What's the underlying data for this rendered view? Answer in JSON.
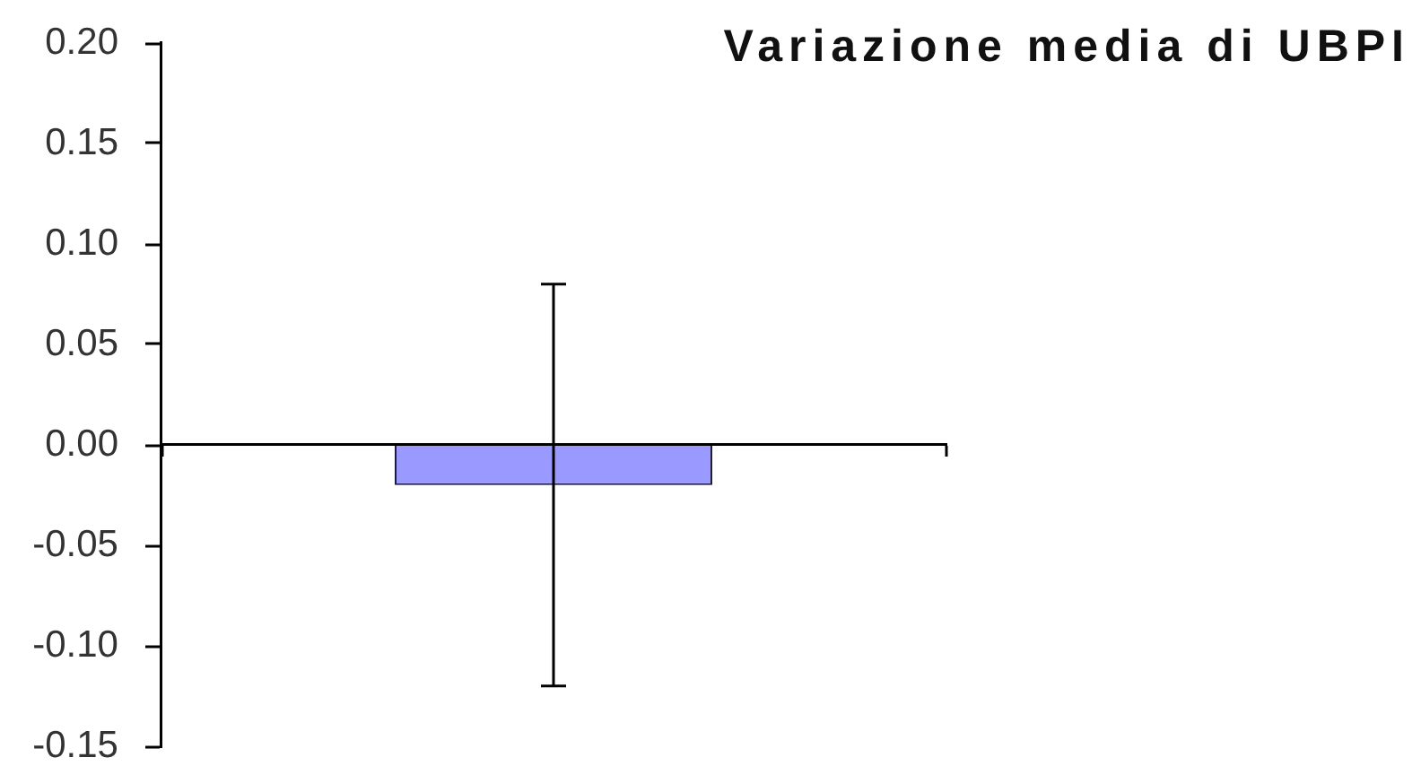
{
  "chart_data": {
    "type": "bar",
    "title": "Variazione media di UBPI",
    "categories": [
      null
    ],
    "values": [
      -0.02
    ],
    "errors": [
      0.1
    ],
    "color": "#9999ff",
    "ylim": [
      -0.15,
      0.2
    ],
    "yticks": [
      {
        "value": -0.15,
        "label": "-0.15"
      },
      {
        "value": -0.1,
        "label": "-0.10"
      },
      {
        "value": -0.05,
        "label": "-0.05"
      },
      {
        "value": 0,
        "label": "0.00"
      },
      {
        "value": 0.05,
        "label": "0.05"
      },
      {
        "value": 0.1,
        "label": "0.10"
      },
      {
        "value": 0.15,
        "label": "0.15"
      },
      {
        "value": 0.2,
        "label": "0.20"
      }
    ]
  }
}
